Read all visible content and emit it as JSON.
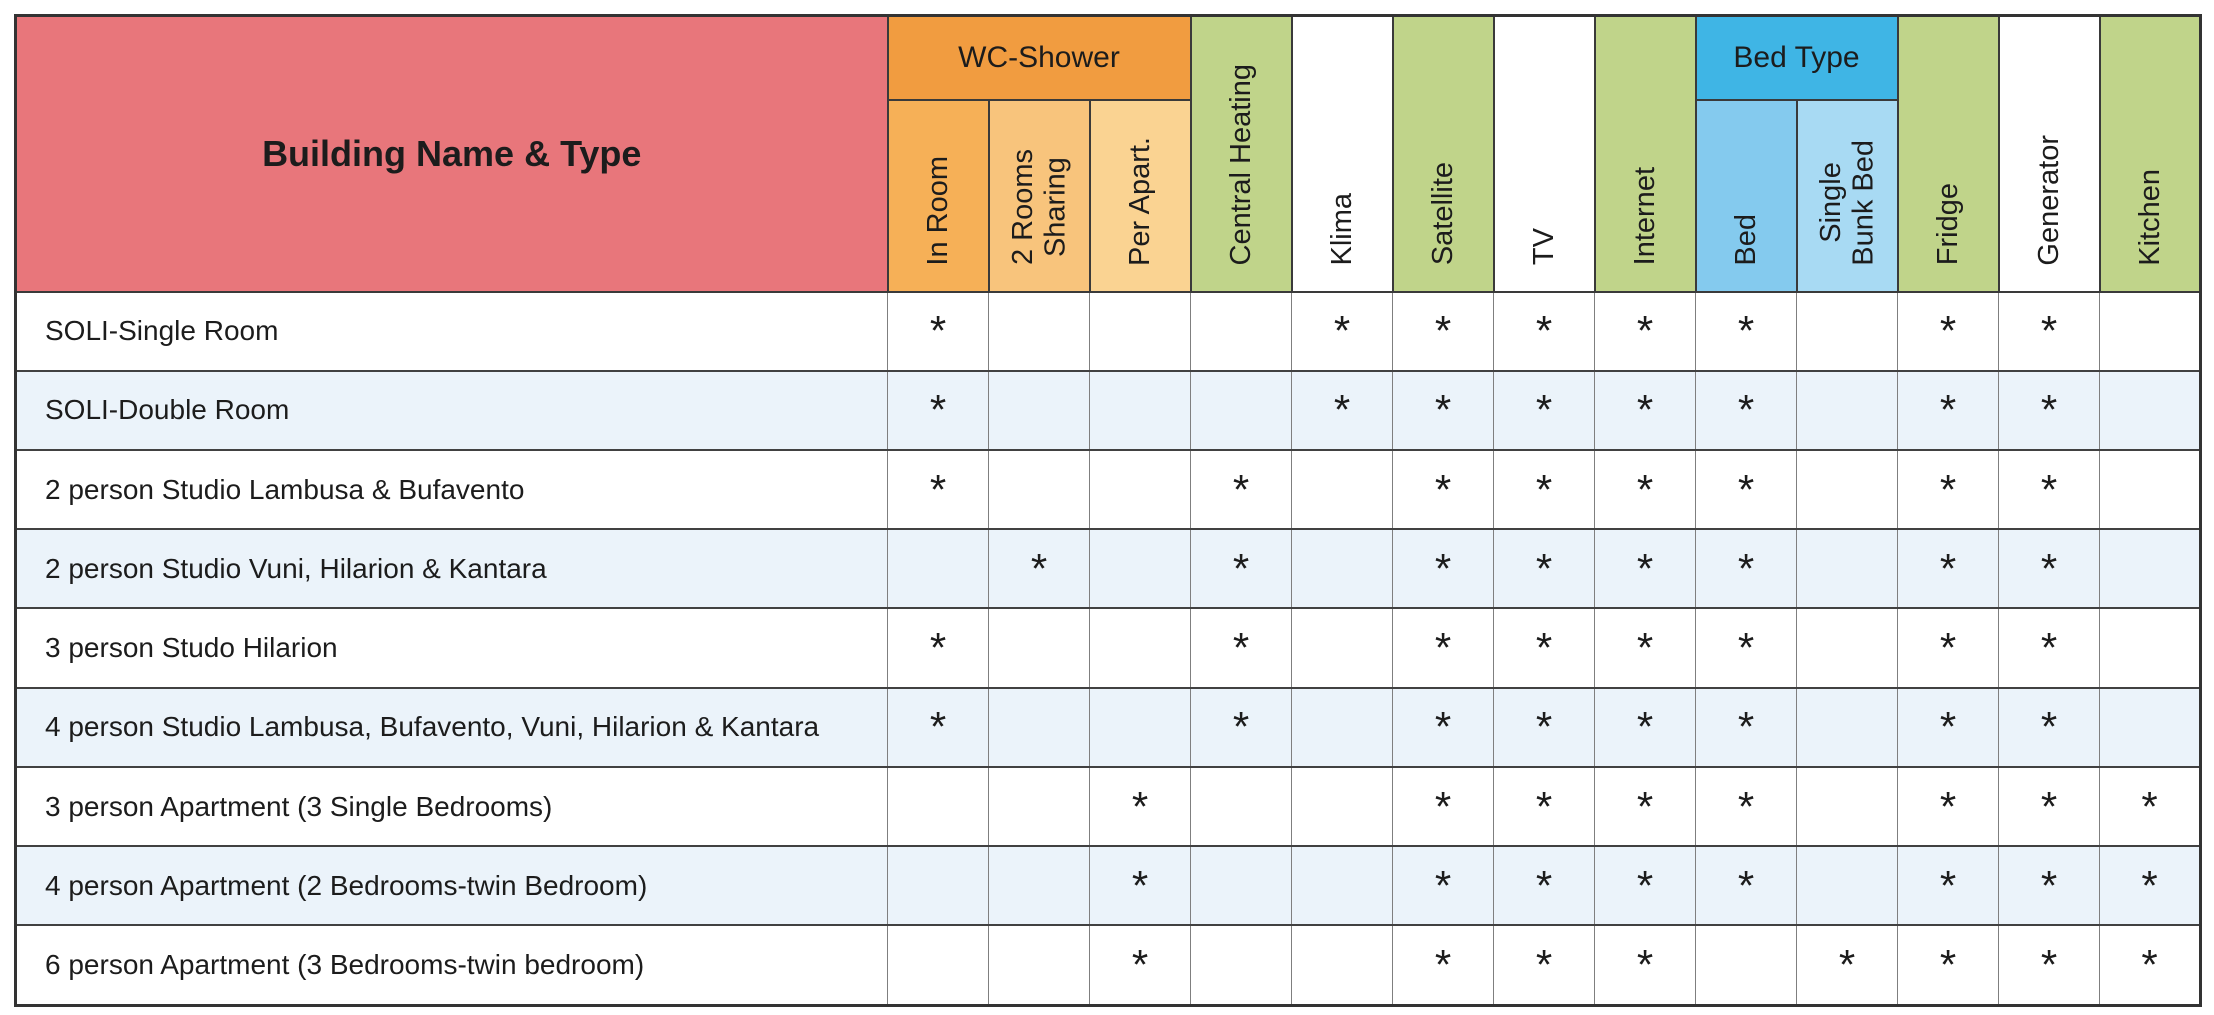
{
  "chart_data": {
    "type": "table",
    "corner_header": "Building Name & Type",
    "marker": "*",
    "column_groups": [
      {
        "label": "WC-Shower",
        "header_bg": "#F19C40",
        "spans": [
          "in_room",
          "rooms_2_sharing",
          "per_apart"
        ]
      },
      {
        "label": "Bed Type",
        "header_bg": "#3FB5E5",
        "spans": [
          "bed",
          "single_bunk_bed"
        ]
      }
    ],
    "columns": [
      {
        "key": "in_room",
        "label": "In Room",
        "group": "WC-Shower",
        "header_bg": "#F6B057"
      },
      {
        "key": "rooms_2_sharing",
        "label": "2 Rooms\nSharing",
        "group": "WC-Shower",
        "header_bg": "#F8C47C"
      },
      {
        "key": "per_apart",
        "label": "Per Apart.",
        "group": "WC-Shower",
        "header_bg": "#FAD392"
      },
      {
        "key": "central_heating",
        "label": "Central Heating",
        "group": null,
        "header_bg": "#C0D48A"
      },
      {
        "key": "klima",
        "label": "Klima",
        "group": null,
        "header_bg": "#FFFFFF"
      },
      {
        "key": "satellite",
        "label": "Satellite",
        "group": null,
        "header_bg": "#C0D48A"
      },
      {
        "key": "tv",
        "label": "TV",
        "group": null,
        "header_bg": "#FFFFFF"
      },
      {
        "key": "internet",
        "label": "Internet",
        "group": null,
        "header_bg": "#C0D48A"
      },
      {
        "key": "bed",
        "label": "Bed",
        "group": "Bed Type",
        "header_bg": "#84CAEE"
      },
      {
        "key": "single_bunk_bed",
        "label": "Single\nBunk Bed",
        "group": "Bed Type",
        "header_bg": "#A8DAF3"
      },
      {
        "key": "fridge",
        "label": "Fridge",
        "group": null,
        "header_bg": "#C0D48A"
      },
      {
        "key": "generator",
        "label": "Generator",
        "group": null,
        "header_bg": "#FFFFFF"
      },
      {
        "key": "kitchen",
        "label": "Kitchen",
        "group": null,
        "header_bg": "#C0D48A"
      }
    ],
    "rows": [
      {
        "name": "SOLI-Single Room",
        "amenities": [
          1,
          0,
          0,
          0,
          1,
          1,
          1,
          1,
          1,
          0,
          1,
          1,
          0
        ]
      },
      {
        "name": "SOLI-Double Room",
        "amenities": [
          1,
          0,
          0,
          0,
          1,
          1,
          1,
          1,
          1,
          0,
          1,
          1,
          0
        ]
      },
      {
        "name": "2 person Studio Lambusa & Bufavento",
        "amenities": [
          1,
          0,
          0,
          1,
          0,
          1,
          1,
          1,
          1,
          0,
          1,
          1,
          0
        ]
      },
      {
        "name": "2 person Studio Vuni, Hilarion & Kantara",
        "amenities": [
          0,
          1,
          0,
          1,
          0,
          1,
          1,
          1,
          1,
          0,
          1,
          1,
          0
        ]
      },
      {
        "name": "3 person Studo Hilarion",
        "amenities": [
          1,
          0,
          0,
          1,
          0,
          1,
          1,
          1,
          1,
          0,
          1,
          1,
          0
        ]
      },
      {
        "name": "4 person Studio Lambusa, Bufavento, Vuni, Hilarion & Kantara",
        "amenities": [
          1,
          0,
          0,
          1,
          0,
          1,
          1,
          1,
          1,
          0,
          1,
          1,
          0
        ]
      },
      {
        "name": "3 person Apartment (3 Single Bedrooms)",
        "amenities": [
          0,
          0,
          1,
          0,
          0,
          1,
          1,
          1,
          1,
          0,
          1,
          1,
          1
        ]
      },
      {
        "name": "4 person Apartment (2 Bedrooms-twin Bedroom)",
        "amenities": [
          0,
          0,
          1,
          0,
          0,
          1,
          1,
          1,
          1,
          0,
          1,
          1,
          1
        ]
      },
      {
        "name": "6 person Apartment (3 Bedrooms-twin bedroom)",
        "amenities": [
          0,
          0,
          1,
          0,
          0,
          1,
          1,
          1,
          0,
          1,
          1,
          1,
          1
        ]
      }
    ]
  },
  "colors": {
    "corner_bg": "#E8767B",
    "row_alt": "#EBF3FA",
    "row_base": "#FFFFFF",
    "grid_dark": "#3a3a3a",
    "grid_light": "#7f7f7f",
    "text": "#1c1c1c"
  }
}
